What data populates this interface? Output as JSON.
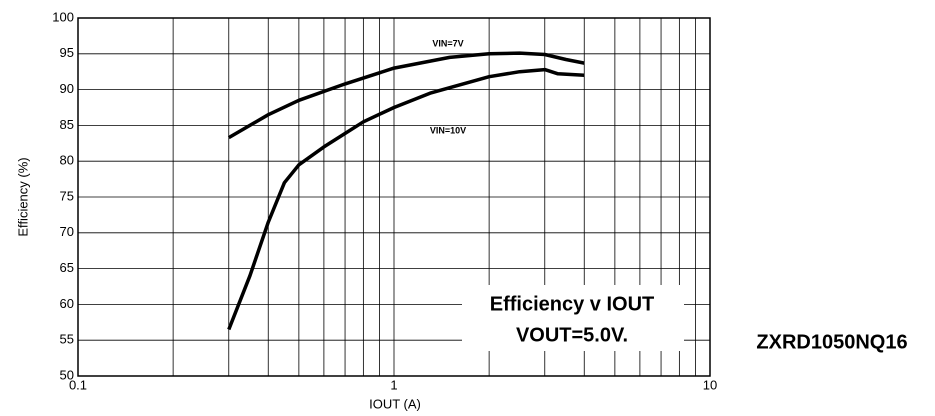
{
  "chart_data": {
    "type": "line",
    "xlabel": "IOUT (A)",
    "ylabel": "Efficiency (%)",
    "annotations": [
      "Efficiency v IOUT",
      "VOUT=5.0V.",
      "ZXRD1050NQ16"
    ],
    "xscale": "log",
    "xlim": [
      0.1,
      10
    ],
    "xticks": [
      0.1,
      1,
      10
    ],
    "xgrid_minor": [
      0.2,
      0.3,
      0.4,
      0.5,
      0.6,
      0.7,
      0.8,
      0.9,
      2,
      3,
      4,
      5,
      6,
      7,
      8,
      9
    ],
    "ylim": [
      50,
      100
    ],
    "yticks": [
      50,
      55,
      60,
      65,
      70,
      75,
      80,
      85,
      90,
      95,
      100
    ],
    "grid": true,
    "series": [
      {
        "name": "VIN=7V",
        "color": "#000000",
        "x": [
          0.3,
          0.4,
          0.5,
          0.7,
          1,
          1.5,
          2,
          2.5,
          3,
          3.5,
          4
        ],
        "values": [
          83.3,
          86.5,
          88.5,
          90.8,
          93,
          94.5,
          95,
          95.1,
          94.9,
          94.2,
          93.7
        ]
      },
      {
        "name": "VIN=10V",
        "color": "#000000",
        "x": [
          0.3,
          0.35,
          0.4,
          0.45,
          0.5,
          0.6,
          0.8,
          1,
          1.3,
          2,
          2.5,
          3,
          3.3,
          4
        ],
        "values": [
          56.5,
          64,
          71.5,
          77,
          79.5,
          82,
          85.5,
          87.5,
          89.5,
          91.8,
          92.5,
          92.8,
          92.2,
          92
        ]
      }
    ]
  }
}
